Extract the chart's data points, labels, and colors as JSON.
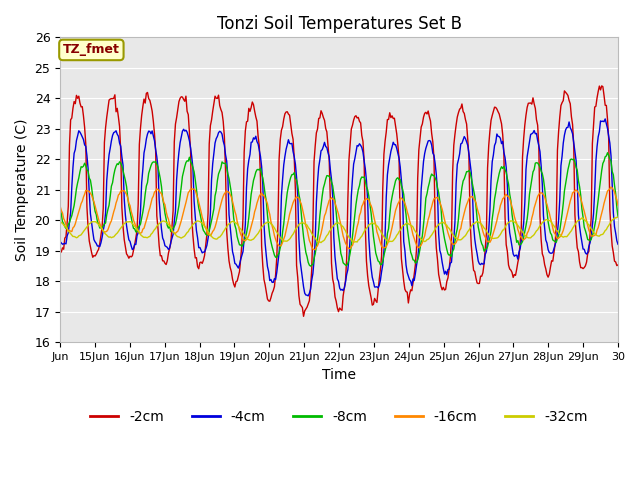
{
  "title": "Tonzi Soil Temperatures Set B",
  "xlabel": "Time",
  "ylabel": "Soil Temperature (C)",
  "ylim": [
    16.0,
    26.0
  ],
  "yticks": [
    16.0,
    17.0,
    18.0,
    19.0,
    20.0,
    21.0,
    22.0,
    23.0,
    24.0,
    25.0,
    26.0
  ],
  "series_labels": [
    "-2cm",
    "-4cm",
    "-8cm",
    "-16cm",
    "-32cm"
  ],
  "series_colors": [
    "#cc0000",
    "#0000dd",
    "#00bb00",
    "#ff8800",
    "#cccc00"
  ],
  "annotation_text": "TZ_fmet",
  "annotation_bg": "#ffffcc",
  "annotation_border": "#999900",
  "plot_bg_color": "#e8e8e8",
  "fig_bg_color": "#ffffff",
  "grid_color": "#ffffff",
  "n_points": 480,
  "n_days": 16
}
